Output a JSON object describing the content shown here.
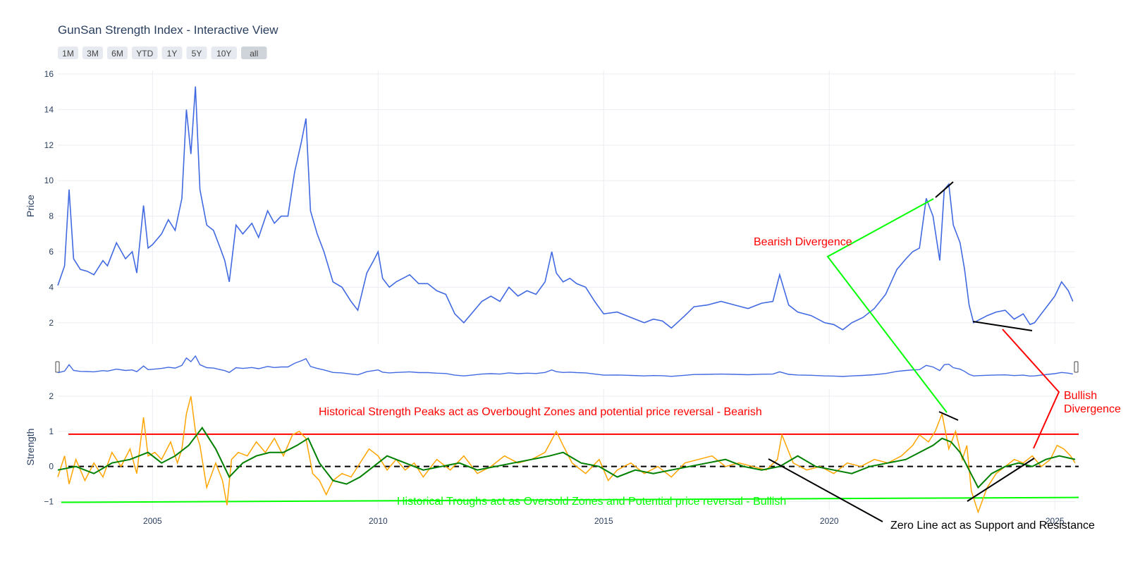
{
  "title": "GunSan Strength Index - Interactive View",
  "range_buttons": [
    "1M",
    "3M",
    "6M",
    "YTD",
    "1Y",
    "5Y",
    "10Y",
    "all"
  ],
  "active_range": "all",
  "colors": {
    "price": "#4169e1",
    "strength": "#ffa500",
    "strength_smooth": "#008000",
    "zero_line": "#000000",
    "overbought": "#ff0000",
    "oversold": "#00ff00",
    "bearish": "#ff0000",
    "bullish": "#ff0000",
    "grid": "#ebedf2",
    "text": "#2a3f5f"
  },
  "chart_data": [
    {
      "type": "line",
      "panel": "price",
      "title": "GunSan Strength Index - Interactive View",
      "xlabel": "",
      "ylabel": "Price",
      "xlim": [
        2002.9,
        2025.45
      ],
      "ylim": [
        0.8,
        16.2
      ],
      "yticks": [
        2,
        4,
        6,
        8,
        10,
        12,
        14,
        16
      ],
      "xticks": [
        "2005",
        "2010",
        "2015",
        "2020",
        "2025"
      ],
      "grid": true,
      "series": [
        {
          "x": [
            2002.9,
            2003.05,
            2003.15,
            2003.25,
            2003.4,
            2003.55,
            2003.7,
            2003.9,
            2004.0,
            2004.2,
            2004.4,
            2004.55,
            2004.65,
            2004.8,
            2004.9,
            2005.0,
            2005.2,
            2005.35,
            2005.5,
            2005.65,
            2005.75,
            2005.85,
            2005.95,
            2006.05,
            2006.2,
            2006.35,
            2006.5,
            2006.6,
            2006.7,
            2006.85,
            2007.0,
            2007.2,
            2007.35,
            2007.55,
            2007.7,
            2007.85,
            2008.0,
            2008.15,
            2008.3,
            2008.4,
            2008.5,
            2008.65,
            2008.8,
            2009.0,
            2009.2,
            2009.4,
            2009.55,
            2009.75,
            2009.9,
            2010.0,
            2010.1,
            2010.25,
            2010.4,
            2010.55,
            2010.7,
            2010.9,
            2011.1,
            2011.3,
            2011.5,
            2011.7,
            2011.9,
            2012.1,
            2012.3,
            2012.5,
            2012.7,
            2012.9,
            2013.1,
            2013.3,
            2013.5,
            2013.7,
            2013.85,
            2013.95,
            2014.1,
            2014.25,
            2014.4,
            2014.6,
            2014.8,
            2015.0,
            2015.3,
            2015.6,
            2015.9,
            2016.1,
            2016.3,
            2016.5,
            2016.8,
            2017.0,
            2017.3,
            2017.6,
            2017.9,
            2018.2,
            2018.5,
            2018.75,
            2018.9,
            2019.1,
            2019.3,
            2019.6,
            2019.9,
            2020.1,
            2020.3,
            2020.5,
            2020.75,
            2021.0,
            2021.25,
            2021.5,
            2021.7,
            2021.85,
            2022.0,
            2022.15,
            2022.3,
            2022.45,
            2022.55,
            2022.65,
            2022.75,
            2022.9,
            2023.0,
            2023.1,
            2023.2,
            2023.35,
            2023.5,
            2023.7,
            2023.9,
            2024.1,
            2024.3,
            2024.45,
            2024.55,
            2024.7,
            2024.85,
            2025.0,
            2025.15,
            2025.3,
            2025.4
          ],
          "y": [
            4.1,
            5.2,
            9.5,
            5.6,
            5.0,
            4.9,
            4.7,
            5.5,
            5.2,
            6.5,
            5.6,
            6.0,
            4.8,
            8.6,
            6.2,
            6.4,
            7.0,
            7.8,
            7.2,
            9.0,
            14.0,
            11.5,
            15.3,
            9.5,
            7.5,
            7.2,
            6.2,
            5.5,
            4.3,
            7.5,
            7.0,
            7.6,
            6.8,
            8.3,
            7.6,
            8.0,
            8.0,
            10.5,
            12.2,
            13.5,
            8.3,
            7.0,
            6.0,
            4.3,
            4.0,
            3.2,
            2.7,
            4.8,
            5.5,
            6.0,
            4.5,
            4.0,
            4.3,
            4.5,
            4.7,
            4.2,
            4.2,
            3.8,
            3.6,
            2.5,
            2.0,
            2.6,
            3.2,
            3.5,
            3.2,
            4.0,
            3.5,
            3.8,
            3.6,
            4.3,
            6.0,
            4.8,
            4.3,
            4.5,
            4.2,
            4.0,
            3.2,
            2.5,
            2.6,
            2.3,
            2.0,
            2.2,
            2.1,
            1.7,
            2.4,
            2.9,
            3.0,
            3.2,
            3.0,
            2.8,
            3.1,
            3.2,
            4.7,
            3.0,
            2.6,
            2.4,
            2.0,
            1.9,
            1.6,
            2.0,
            2.3,
            2.8,
            3.6,
            5.0,
            5.6,
            6.0,
            6.2,
            9.0,
            8.0,
            5.5,
            9.5,
            9.8,
            7.5,
            6.5,
            5.0,
            3.0,
            2.0,
            2.2,
            2.4,
            2.6,
            2.7,
            2.2,
            2.5,
            1.9,
            2.0,
            2.5,
            3.0,
            3.5,
            4.3,
            3.8,
            3.2
          ]
        }
      ],
      "annotations": [
        {
          "text": "Bearish Divergence",
          "color": "#ff0000"
        }
      ]
    },
    {
      "type": "line",
      "panel": "strength",
      "xlabel": "",
      "ylabel": "Strength",
      "xlim": [
        2002.9,
        2025.45
      ],
      "ylim": [
        -1.25,
        2.2
      ],
      "yticks": [
        -1,
        0,
        1,
        2
      ],
      "xticks": [
        "2005",
        "2010",
        "2015",
        "2020",
        "2025"
      ],
      "grid": true,
      "series": [
        {
          "x": [
            2002.9,
            2003.05,
            2003.15,
            2003.3,
            2003.5,
            2003.7,
            2003.9,
            2004.1,
            2004.3,
            2004.5,
            2004.65,
            2004.8,
            2004.9,
            2005.05,
            2005.2,
            2005.4,
            2005.55,
            2005.65,
            2005.75,
            2005.85,
            2005.95,
            2006.05,
            2006.2,
            2006.4,
            2006.55,
            2006.65,
            2006.75,
            2006.9,
            2007.1,
            2007.3,
            2007.5,
            2007.7,
            2007.9,
            2008.1,
            2008.25,
            2008.4,
            2008.55,
            2008.7,
            2008.85,
            2009.0,
            2009.2,
            2009.4,
            2009.6,
            2009.8,
            2010.0,
            2010.2,
            2010.4,
            2010.6,
            2010.8,
            2011.0,
            2011.3,
            2011.6,
            2011.9,
            2012.2,
            2012.5,
            2012.8,
            2013.1,
            2013.4,
            2013.7,
            2013.95,
            2014.1,
            2014.3,
            2014.6,
            2014.9,
            2015.1,
            2015.3,
            2015.6,
            2015.9,
            2016.2,
            2016.5,
            2016.8,
            2017.1,
            2017.4,
            2017.7,
            2018.0,
            2018.3,
            2018.6,
            2018.85,
            2018.95,
            2019.2,
            2019.5,
            2019.8,
            2020.1,
            2020.4,
            2020.7,
            2021.0,
            2021.3,
            2021.6,
            2021.85,
            2022.0,
            2022.2,
            2022.35,
            2022.5,
            2022.65,
            2022.8,
            2022.95,
            2023.05,
            2023.15,
            2023.3,
            2023.5,
            2023.7,
            2023.9,
            2024.1,
            2024.3,
            2024.5,
            2024.7,
            2024.9,
            2025.05,
            2025.2,
            2025.35,
            2025.45
          ],
          "y": [
            -0.3,
            0.3,
            -0.5,
            0.2,
            -0.4,
            0.1,
            -0.3,
            0.4,
            0.0,
            0.5,
            -0.2,
            1.4,
            0.3,
            0.4,
            0.2,
            0.7,
            0.1,
            0.5,
            1.5,
            2.0,
            1.0,
            0.6,
            -0.6,
            0.1,
            -0.4,
            -1.1,
            0.2,
            0.4,
            0.3,
            0.7,
            0.4,
            0.8,
            0.3,
            0.9,
            1.0,
            0.8,
            -0.2,
            -0.4,
            -0.8,
            -0.4,
            -0.2,
            -0.3,
            0.1,
            0.5,
            0.3,
            -0.1,
            0.2,
            -0.1,
            0.1,
            -0.3,
            0.2,
            -0.1,
            0.3,
            -0.2,
            0.0,
            0.3,
            0.1,
            0.2,
            0.4,
            1.0,
            0.6,
            0.1,
            -0.2,
            0.2,
            -0.4,
            -0.1,
            0.1,
            -0.2,
            0.0,
            -0.3,
            0.1,
            0.2,
            0.3,
            0.0,
            0.1,
            0.0,
            -0.1,
            0.2,
            0.9,
            0.1,
            -0.1,
            0.0,
            -0.2,
            0.1,
            0.0,
            0.2,
            0.1,
            0.3,
            0.6,
            0.9,
            0.7,
            1.0,
            1.5,
            0.5,
            1.0,
            0.2,
            0.6,
            -0.7,
            -1.3,
            -0.6,
            -0.2,
            0.0,
            0.2,
            0.1,
            0.3,
            0.0,
            0.2,
            0.6,
            0.5,
            0.3,
            0.1
          ]
        },
        {
          "x": [
            2002.9,
            2003.3,
            2003.7,
            2004.1,
            2004.5,
            2004.9,
            2005.2,
            2005.5,
            2005.8,
            2006.1,
            2006.4,
            2006.7,
            2007.0,
            2007.3,
            2007.6,
            2007.9,
            2008.2,
            2008.45,
            2008.7,
            2009.0,
            2009.3,
            2009.6,
            2009.9,
            2010.2,
            2010.6,
            2011.0,
            2011.4,
            2011.8,
            2012.2,
            2012.6,
            2013.0,
            2013.4,
            2013.8,
            2014.1,
            2014.5,
            2014.9,
            2015.3,
            2015.7,
            2016.1,
            2016.5,
            2016.9,
            2017.3,
            2017.7,
            2018.1,
            2018.5,
            2018.9,
            2019.3,
            2019.7,
            2020.1,
            2020.5,
            2020.9,
            2021.3,
            2021.7,
            2022.0,
            2022.3,
            2022.5,
            2022.7,
            2022.9,
            2023.1,
            2023.3,
            2023.6,
            2023.9,
            2024.2,
            2024.5,
            2024.8,
            2025.1,
            2025.45
          ],
          "y": [
            -0.1,
            0.0,
            -0.2,
            0.1,
            0.2,
            0.4,
            0.1,
            0.3,
            0.6,
            1.1,
            0.5,
            -0.3,
            0.1,
            0.3,
            0.4,
            0.4,
            0.6,
            0.8,
            0.1,
            -0.4,
            -0.5,
            -0.3,
            0.0,
            0.3,
            0.1,
            -0.1,
            0.0,
            0.1,
            -0.1,
            0.0,
            0.1,
            0.2,
            0.3,
            0.4,
            0.1,
            0.0,
            -0.3,
            -0.1,
            -0.2,
            -0.1,
            0.0,
            0.1,
            0.2,
            0.0,
            -0.1,
            0.0,
            0.3,
            0.0,
            -0.1,
            -0.2,
            0.0,
            0.1,
            0.2,
            0.4,
            0.6,
            0.8,
            0.7,
            0.4,
            -0.1,
            -0.6,
            -0.2,
            0.0,
            0.1,
            0.0,
            0.2,
            0.3,
            0.2
          ]
        }
      ],
      "reference_lines": {
        "zero": 0,
        "overbought": [
          0.92,
          0.92
        ],
        "oversold": [
          -1.02,
          -0.88
        ]
      },
      "annotations": [
        {
          "text": "Historical Strength Peaks act as Overbought Zones and potential price reversal  - Bearish",
          "color": "#ff0000"
        },
        {
          "text": "Historical Troughs act as Oversold Zones and Potential price reversal - Bullish",
          "color": "#00ff00"
        },
        {
          "text": "Zero Line act as Support and Resistance",
          "color": "#000000"
        },
        {
          "text": "Bullish",
          "color": "#ff0000"
        },
        {
          "text": "Divergence",
          "color": "#ff0000"
        }
      ]
    }
  ]
}
